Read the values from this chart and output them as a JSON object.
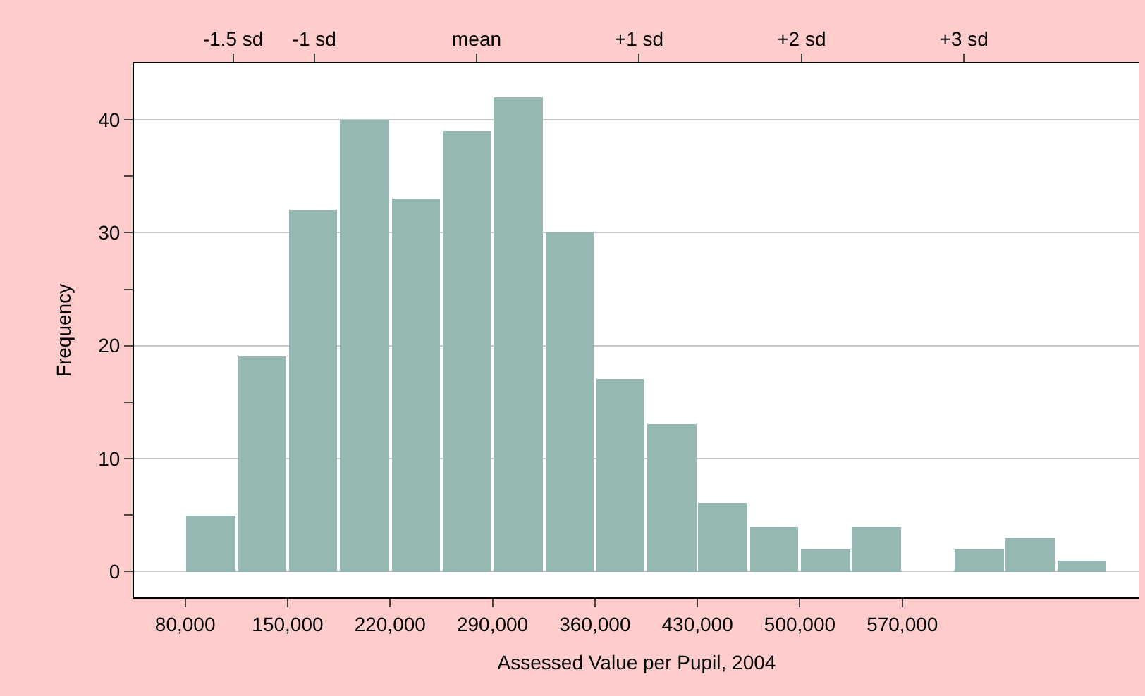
{
  "chart_data": {
    "type": "histogram",
    "xlabel": "Assessed Value per Pupil, 2004",
    "ylabel": "Frequency",
    "bins": [
      80000,
      115000,
      150000,
      185000,
      220000,
      255000,
      290000,
      325000,
      360000,
      395000,
      430000,
      465000,
      500000,
      535000,
      570000,
      605000,
      640000,
      675000,
      710000
    ],
    "values": [
      5,
      19,
      32,
      40,
      33,
      39,
      42,
      30,
      17,
      13,
      6,
      4,
      2,
      4,
      0,
      2,
      3,
      1
    ],
    "color": "#96b8b2",
    "xlim": [
      45000,
      732000
    ],
    "xticks": [
      {
        "value": 80000,
        "label": "80,000"
      },
      {
        "value": 150000,
        "label": "150,000"
      },
      {
        "value": 220000,
        "label": "220,000"
      },
      {
        "value": 290000,
        "label": "290,000"
      },
      {
        "value": 360000,
        "label": "360,000"
      },
      {
        "value": 430000,
        "label": "430,000"
      },
      {
        "value": 500000,
        "label": "500,000"
      },
      {
        "value": 570000,
        "label": "570,000"
      }
    ],
    "ylim": [
      -2.3,
      45
    ],
    "yticks": [
      0,
      {
        "value": 5,
        "label": null
      },
      10,
      {
        "value": 15,
        "label": null
      },
      20,
      {
        "value": 25,
        "label": null
      },
      30,
      {
        "value": 35,
        "label": null
      },
      40
    ],
    "x2lim": [
      -2.11,
      4.08
    ],
    "x2ticks": [
      {
        "value": -1.5,
        "label": "-1.5 sd"
      },
      {
        "value": -1,
        "label": "-1 sd"
      },
      {
        "value": 0,
        "label": "mean"
      },
      {
        "value": 1,
        "label": "+1 sd"
      },
      {
        "value": 2,
        "label": "+2 sd"
      },
      {
        "value": 3,
        "label": "+3 sd"
      }
    ],
    "grid": "y"
  }
}
